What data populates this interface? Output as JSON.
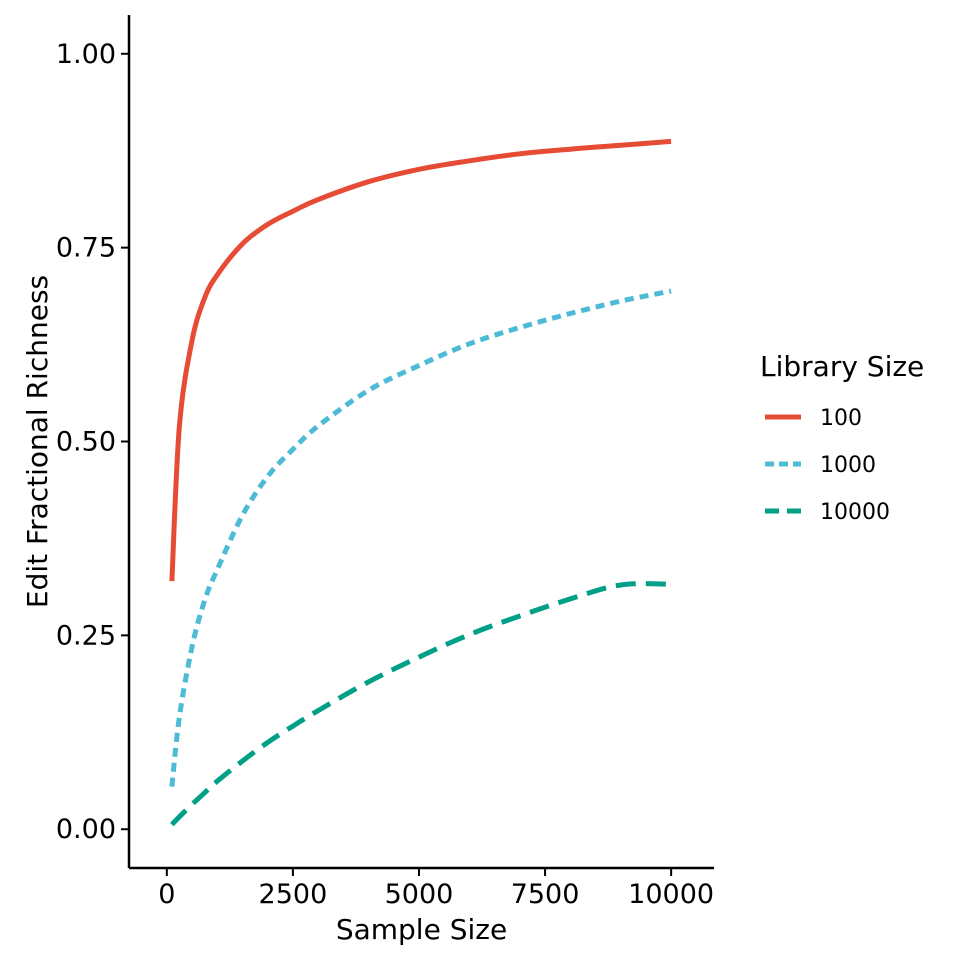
{
  "chart_data": {
    "type": "line",
    "title": "",
    "xlabel": "Sample Size",
    "ylabel": "Edit Fractional Richness",
    "xlim": [
      -750,
      10850
    ],
    "ylim": [
      -0.05,
      1.05
    ],
    "x_ticks": [
      0,
      2500,
      5000,
      7500,
      10000
    ],
    "x_tick_labels": [
      "0",
      "2500",
      "5000",
      "7500",
      "10000"
    ],
    "y_ticks": [
      0,
      0.25,
      0.5,
      0.75,
      1.0
    ],
    "y_tick_labels": [
      "0.00",
      "0.25",
      "0.50",
      "0.75",
      "1.00"
    ],
    "grid": false,
    "legend": {
      "title": "Library Size",
      "position": "right"
    },
    "x": [
      100,
      250,
      500,
      750,
      1000,
      1500,
      2000,
      2500,
      3000,
      4000,
      5000,
      6000,
      7000,
      8000,
      9000,
      10000
    ],
    "series": [
      {
        "name": "100",
        "color": "#E64B35",
        "dash": "solid",
        "values": [
          0.32,
          0.52,
          0.63,
          0.685,
          0.715,
          0.755,
          0.78,
          0.797,
          0.812,
          0.835,
          0.851,
          0.862,
          0.871,
          0.877,
          0.882,
          0.887
        ]
      },
      {
        "name": "1000",
        "color": "#4DBBD5",
        "dash": "dotted",
        "values": [
          0.055,
          0.145,
          0.235,
          0.295,
          0.335,
          0.405,
          0.455,
          0.49,
          0.52,
          0.566,
          0.598,
          0.626,
          0.647,
          0.665,
          0.681,
          0.694
        ]
      },
      {
        "name": "10000",
        "color": "#00A087",
        "dash": "dashed",
        "values": [
          0.006,
          0.016,
          0.032,
          0.047,
          0.062,
          0.088,
          0.112,
          0.133,
          0.153,
          0.19,
          0.222,
          0.251,
          0.275,
          0.297,
          0.315,
          0.316
        ]
      }
    ]
  }
}
